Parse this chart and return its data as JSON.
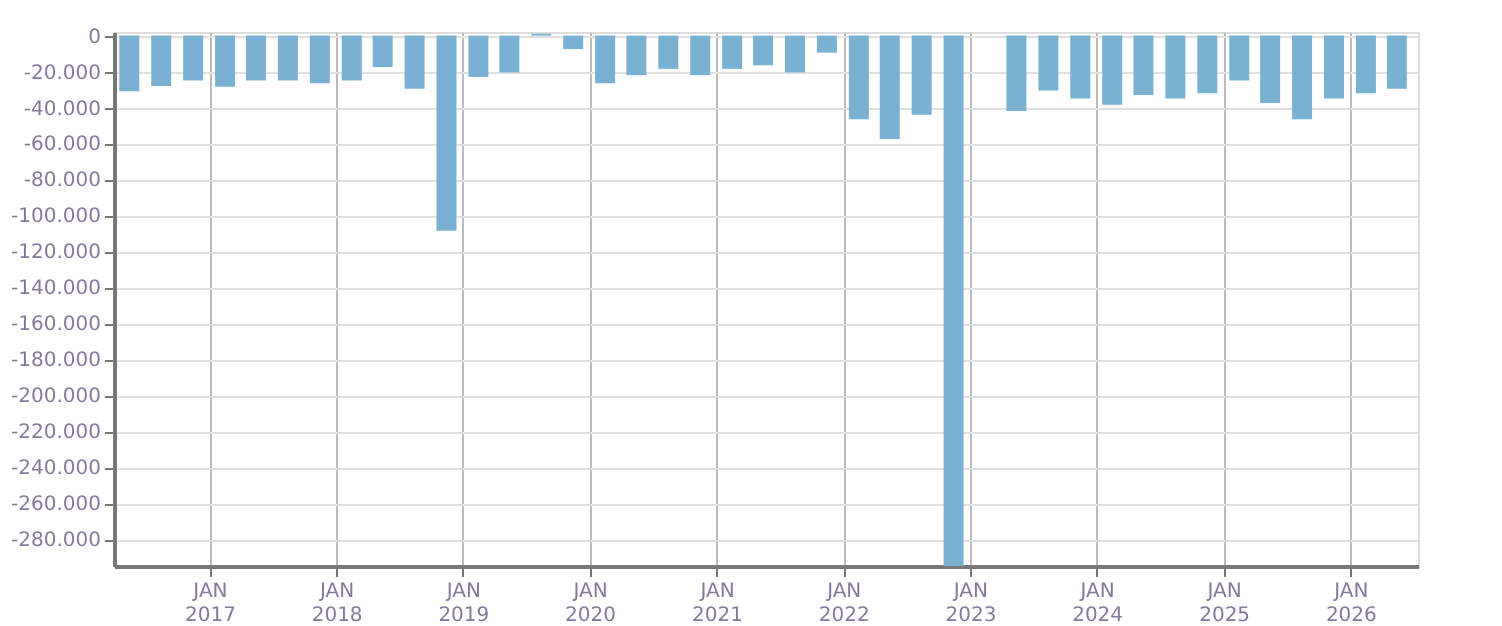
{
  "chart_data": {
    "type": "bar",
    "color": "#79b1d3",
    "grid": true,
    "x": [
      "2016-05-15",
      "2016-08-15",
      "2016-11-15",
      "2017-02-15",
      "2017-05-15",
      "2017-08-15",
      "2017-11-15",
      "2018-02-15",
      "2018-05-15",
      "2018-08-15",
      "2018-11-15",
      "2019-02-15",
      "2019-05-15",
      "2019-08-15",
      "2019-11-15",
      "2020-02-15",
      "2020-05-15",
      "2020-08-15",
      "2020-11-15",
      "2021-02-15",
      "2021-05-15",
      "2021-08-15",
      "2021-11-15",
      "2022-02-15",
      "2022-05-15",
      "2022-08-15",
      "2022-11-15",
      "2023-02-15",
      "2023-05-15",
      "2023-08-15",
      "2023-11-15",
      "2024-02-15",
      "2024-05-15",
      "2024-08-15",
      "2024-11-15",
      "2025-02-15",
      "2025-05-15",
      "2025-08-15",
      "2025-11-15",
      "2026-02-15",
      "2026-05-15"
    ],
    "values": [
      -31000,
      -28000,
      -25000,
      -28500,
      -25000,
      -25000,
      -26500,
      -25000,
      -17500,
      -29500,
      -108500,
      -23000,
      -20500,
      1000,
      -7500,
      -26500,
      -22000,
      -18500,
      -22000,
      -18500,
      -16500,
      -20500,
      -9500,
      -46500,
      -57500,
      -44000,
      -295000,
      null,
      -42000,
      -30500,
      -35000,
      -38500,
      -33000,
      -35000,
      -32000,
      -25000,
      -37500,
      -46500,
      -35000,
      -32000,
      -29500
    ],
    "xlim": [
      "2016-04-01",
      "2026-07-15"
    ],
    "xticks": [
      {
        "value": "2017-01-01",
        "label": "JAN 2017"
      },
      {
        "value": "2018-01-01",
        "label": "JAN 2018"
      },
      {
        "value": "2019-01-01",
        "label": "JAN 2019"
      },
      {
        "value": "2020-01-01",
        "label": "JAN 2020"
      },
      {
        "value": "2021-01-01",
        "label": "JAN 2021"
      },
      {
        "value": "2022-01-01",
        "label": "JAN 2022"
      },
      {
        "value": "2023-01-01",
        "label": "JAN 2023"
      },
      {
        "value": "2024-01-01",
        "label": "JAN 2024"
      },
      {
        "value": "2025-01-01",
        "label": "JAN 2025"
      },
      {
        "value": "2026-01-01",
        "label": "JAN 2026"
      }
    ],
    "ylim": [
      -295000,
      2000
    ],
    "yticks": [
      0,
      {
        "value": -20000,
        "label": "-20.000"
      },
      {
        "value": -40000,
        "label": "-40.000"
      },
      {
        "value": -60000,
        "label": "-60.000"
      },
      {
        "value": -80000,
        "label": "-80.000"
      },
      {
        "value": -100000,
        "label": "-100.000"
      },
      {
        "value": -120000,
        "label": "-120.000"
      },
      {
        "value": -140000,
        "label": "-140.000"
      },
      {
        "value": -160000,
        "label": "-160.000"
      },
      {
        "value": -180000,
        "label": "-180.000"
      },
      {
        "value": -200000,
        "label": "-200.000"
      },
      {
        "value": -220000,
        "label": "-220.000"
      },
      {
        "value": -240000,
        "label": "-240.000"
      },
      {
        "value": -260000,
        "label": "-260.000"
      },
      {
        "value": -280000,
        "label": "-280.000"
      }
    ]
  }
}
